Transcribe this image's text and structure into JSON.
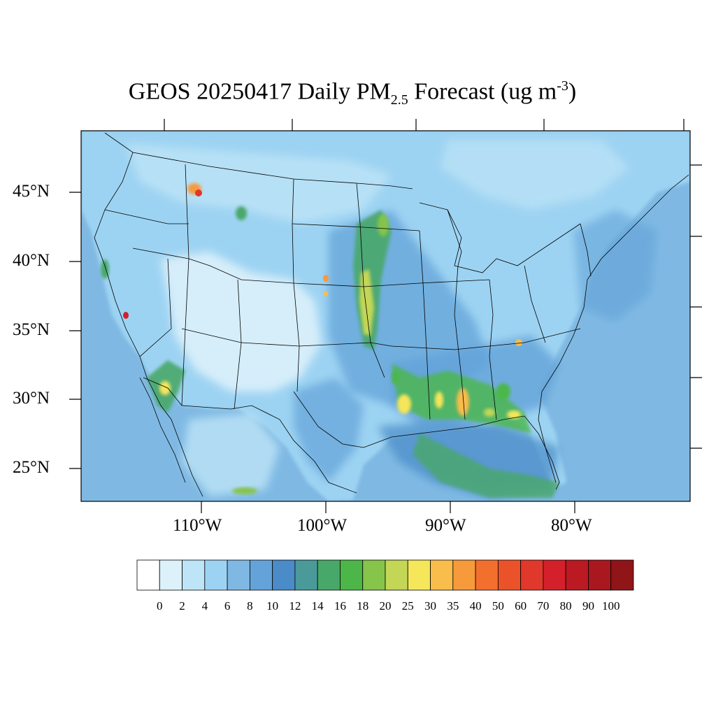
{
  "title": {
    "prefix": "GEOS 20250417 Daily PM",
    "subscript": "2.5",
    "middle": " Forecast (ug m",
    "superscript": "-3",
    "suffix": ")"
  },
  "latitude_labels": [
    "45°N",
    "40°N",
    "35°N",
    "30°N",
    "25°N"
  ],
  "longitude_labels": [
    "110°W",
    "100°W",
    "90°W",
    "80°W"
  ],
  "colorbar": {
    "labels": [
      "0",
      "2",
      "4",
      "6",
      "8",
      "10",
      "12",
      "14",
      "16",
      "18",
      "20",
      "25",
      "30",
      "35",
      "40",
      "50",
      "60",
      "70",
      "80",
      "90",
      "100"
    ],
    "colors": [
      "#ffffff",
      "#ddf1fb",
      "#bde4f7",
      "#9dd3f2",
      "#7fb9e3",
      "#64a3d9",
      "#4a8bc8",
      "#4a9a9a",
      "#48a86a",
      "#4cb748",
      "#86c44a",
      "#c3d656",
      "#f5e65a",
      "#f8bd4b",
      "#f69a3c",
      "#f36f2d",
      "#ec5229",
      "#e0382a",
      "#d3202b",
      "#bb1a22",
      "#a8181e",
      "#8f1518"
    ]
  },
  "colors": {
    "ocean_background": "#7fb9e3",
    "land_background": "#9dd3f2",
    "border": "#000000"
  }
}
